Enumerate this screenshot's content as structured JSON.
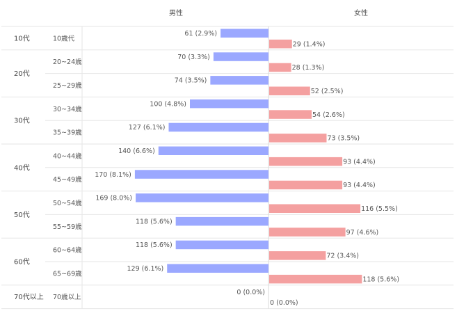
{
  "chart_data": {
    "type": "bar",
    "headers": {
      "male": "男性",
      "female": "女性"
    },
    "groups": [
      {
        "label": "10代",
        "rows": [
          0
        ]
      },
      {
        "label": "20代",
        "rows": [
          1,
          2
        ]
      },
      {
        "label": "30代",
        "rows": [
          3,
          4
        ]
      },
      {
        "label": "40代",
        "rows": [
          5,
          6
        ]
      },
      {
        "label": "50代",
        "rows": [
          7,
          8
        ]
      },
      {
        "label": "60代",
        "rows": [
          9,
          10
        ]
      },
      {
        "label": "70代以上",
        "rows": [
          11
        ]
      }
    ],
    "categories": [
      "10歳代",
      "20~24歳",
      "25~29歳",
      "30~34歳",
      "35~39歳",
      "40~44歳",
      "45~49歳",
      "50~54歳",
      "55~59歳",
      "60~64歳",
      "65~69歳",
      "70歳以上"
    ],
    "series": [
      {
        "name": "男性",
        "color": "#9ba8ff",
        "values": [
          61,
          70,
          74,
          100,
          127,
          140,
          170,
          169,
          118,
          118,
          129,
          0
        ],
        "labels": [
          "61 (2.9%)",
          "70 (3.3%)",
          "74 (3.5%)",
          "100 (4.8%)",
          "127 (6.1%)",
          "140 (6.6%)",
          "170 (8.1%)",
          "169 (8.0%)",
          "118 (5.6%)",
          "118 (5.6%)",
          "129 (6.1%)",
          "0 (0.0%)"
        ]
      },
      {
        "name": "女性",
        "color": "#f4a0a0",
        "values": [
          29,
          28,
          52,
          54,
          73,
          93,
          93,
          116,
          97,
          72,
          118,
          0
        ],
        "labels": [
          "29 (1.4%)",
          "28 (1.3%)",
          "52 (2.5%)",
          "54 (2.6%)",
          "73 (3.5%)",
          "93 (4.4%)",
          "93 (4.4%)",
          "116 (5.5%)",
          "97 (4.6%)",
          "72 (3.4%)",
          "118 (5.6%)",
          "0 (0.0%)"
        ]
      }
    ],
    "grid": true,
    "legend": "none"
  }
}
